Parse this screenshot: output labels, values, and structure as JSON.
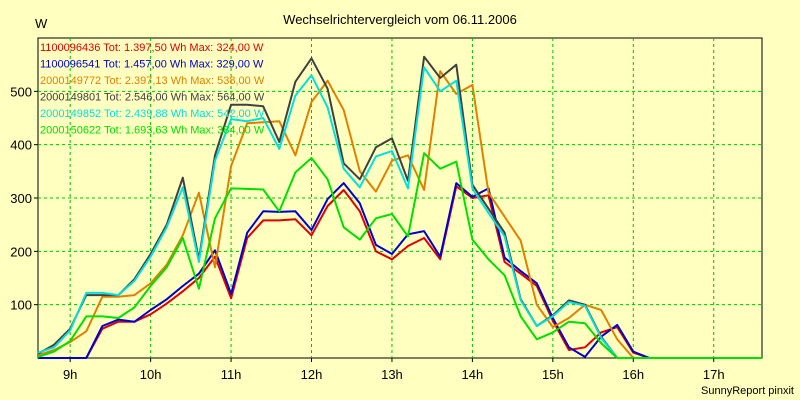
{
  "chart_data": {
    "type": "line",
    "title": "Wechselrichtervergleich vom 06.11.2006",
    "ylabel": "W",
    "xlabel": "",
    "footer": "SunnyReport pinxit",
    "grid": true,
    "legend_position": "top-left",
    "ylim": [
      0,
      600
    ],
    "y_ticks": [
      100,
      200,
      300,
      400,
      500
    ],
    "xlim": [
      8.6,
      17.6
    ],
    "x_tick_values": [
      9,
      10,
      11,
      12,
      13,
      14,
      15,
      16,
      17
    ],
    "x_tick_labels": [
      "9h",
      "10h",
      "11h",
      "12h",
      "13h",
      "14h",
      "15h",
      "16h",
      "17h"
    ],
    "x": [
      8.6,
      8.8,
      9.0,
      9.2,
      9.4,
      9.6,
      9.8,
      10.0,
      10.2,
      10.4,
      10.6,
      10.8,
      11.0,
      11.2,
      11.4,
      11.6,
      11.8,
      12.0,
      12.2,
      12.4,
      12.6,
      12.8,
      13.0,
      13.2,
      13.4,
      13.6,
      13.8,
      14.0,
      14.2,
      14.4,
      14.6,
      14.8,
      15.0,
      15.2,
      15.4,
      15.6,
      15.8,
      16.0,
      16.2,
      16.4,
      16.6,
      16.8,
      17.0,
      17.2,
      17.4,
      17.6
    ],
    "series": [
      {
        "name": "1100096436",
        "legend": "1100096436 Tot: 1.397,50 Wh Max: 324,00 W",
        "color": "#E00000",
        "values": [
          0,
          0,
          0,
          0,
          55,
          68,
          68,
          82,
          102,
          125,
          150,
          190,
          112,
          225,
          258,
          258,
          260,
          230,
          285,
          315,
          275,
          200,
          185,
          210,
          225,
          185,
          322,
          300,
          305,
          180,
          158,
          135,
          70,
          15,
          20,
          48,
          58,
          10,
          0,
          0,
          0,
          0,
          0,
          0,
          0,
          0
        ]
      },
      {
        "name": "1100096541",
        "legend": "1100096541 Tot: 1.457,00 Wh Max: 329,00 W",
        "color": "#0000D0",
        "values": [
          0,
          0,
          0,
          0,
          60,
          72,
          68,
          90,
          110,
          135,
          158,
          202,
          120,
          235,
          275,
          274,
          275,
          240,
          298,
          328,
          290,
          212,
          195,
          232,
          238,
          190,
          328,
          302,
          318,
          188,
          163,
          140,
          75,
          20,
          2,
          40,
          62,
          12,
          0,
          0,
          0,
          0,
          0,
          0,
          0,
          0
        ]
      },
      {
        "name": "2000149772",
        "legend": "2000149772 Tot: 2.397,13 Wh Max: 538,00 W",
        "color": "#E08000",
        "values": [
          5,
          15,
          30,
          50,
          115,
          115,
          118,
          140,
          175,
          230,
          310,
          170,
          360,
          440,
          442,
          444,
          380,
          480,
          520,
          465,
          350,
          312,
          370,
          380,
          315,
          538,
          495,
          512,
          310,
          265,
          220,
          100,
          58,
          75,
          100,
          90,
          35,
          0,
          0,
          0,
          0,
          0,
          0,
          0,
          0,
          0
        ]
      },
      {
        "name": "2000149801",
        "legend": "2000149801 Tot: 2.546,00 Wh Max: 564,00 W",
        "color": "#404040",
        "values": [
          8,
          25,
          55,
          118,
          118,
          118,
          148,
          195,
          250,
          338,
          185,
          380,
          475,
          475,
          472,
          405,
          518,
          562,
          505,
          365,
          335,
          395,
          412,
          332,
          565,
          525,
          550,
          325,
          280,
          235,
          110,
          60,
          80,
          108,
          100,
          40,
          0,
          0,
          0,
          0,
          0,
          0,
          0,
          0,
          0,
          0
        ]
      },
      {
        "name": "2000149852",
        "legend": "2000149852 Tot: 2.439,88 Wh Max: 542,00 W",
        "color": "#00E0E0",
        "values": [
          10,
          20,
          52,
          122,
          122,
          118,
          145,
          190,
          245,
          320,
          180,
          370,
          448,
          444,
          450,
          392,
          492,
          530,
          470,
          355,
          320,
          378,
          388,
          318,
          545,
          500,
          520,
          318,
          272,
          228,
          108,
          60,
          78,
          105,
          98,
          38,
          0,
          0,
          0,
          0,
          0,
          0,
          0,
          0,
          0,
          0
        ]
      },
      {
        "name": "2000150622",
        "legend": "2000150622 Tot: 1.693,63 Wh Max: 384,00 W",
        "color": "#00E000",
        "values": [
          2,
          12,
          32,
          78,
          78,
          75,
          95,
          135,
          170,
          225,
          130,
          262,
          318,
          317,
          316,
          275,
          348,
          375,
          335,
          245,
          222,
          262,
          270,
          228,
          384,
          355,
          368,
          222,
          185,
          155,
          78,
          35,
          48,
          68,
          65,
          28,
          0,
          0,
          0,
          0,
          0,
          0,
          0,
          0,
          0,
          0
        ]
      }
    ]
  }
}
